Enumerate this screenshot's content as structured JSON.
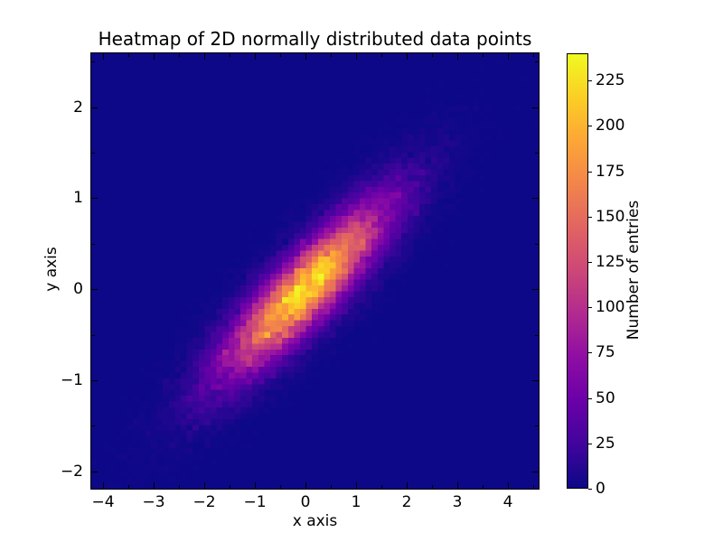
{
  "figure": {
    "background": "#ffffff",
    "text_color": "#000000",
    "axes_color": "#000000"
  },
  "chart_data": {
    "type": "heatmap",
    "title": "Heatmap of 2D normally distributed data points",
    "xlabel": "x axis",
    "ylabel": "y axis",
    "xlim": [
      -4.25,
      4.63
    ],
    "ylim": [
      -2.2,
      2.6
    ],
    "x_tick_values": [
      -4,
      -3,
      -2,
      -1,
      0,
      1,
      2,
      3,
      4
    ],
    "x_tick_labels": [
      "−4",
      "−3",
      "−2",
      "−1",
      "0",
      "1",
      "2",
      "3",
      "4"
    ],
    "y_tick_values": [
      -2,
      -1,
      0,
      1,
      2
    ],
    "y_tick_labels": [
      "−2",
      "−1",
      "0",
      "1",
      "2"
    ],
    "minor_tick_step": 0.5,
    "grid": false,
    "bins": 75,
    "samples": 60000,
    "seed": 42,
    "distribution": {
      "type": "bivariate_normal",
      "mean": [
        0,
        0
      ],
      "sigma_x": 1.05,
      "slope": 0.5,
      "noise_sigma": 0.3
    },
    "colorbar": {
      "label": "Number of entries",
      "tick_values": [
        0,
        25,
        50,
        75,
        100,
        125,
        150,
        175,
        200,
        225
      ],
      "tick_labels": [
        "0",
        "25",
        "50",
        "75",
        "100",
        "125",
        "150",
        "175",
        "200",
        "225"
      ],
      "vmin": 0,
      "vmax": 240,
      "position": "right"
    },
    "colormap": {
      "name": "plasma",
      "background_value_color": "#0d0887",
      "stops": [
        [
          0.0,
          "#0d0887"
        ],
        [
          0.1,
          "#41049d"
        ],
        [
          0.2,
          "#6a00a8"
        ],
        [
          0.3,
          "#8f0da4"
        ],
        [
          0.4,
          "#b12a90"
        ],
        [
          0.5,
          "#cc4778"
        ],
        [
          0.6,
          "#e16462"
        ],
        [
          0.7,
          "#f2844b"
        ],
        [
          0.8,
          "#fca636"
        ],
        [
          0.9,
          "#fcce25"
        ],
        [
          1.0,
          "#f0f921"
        ]
      ]
    }
  }
}
